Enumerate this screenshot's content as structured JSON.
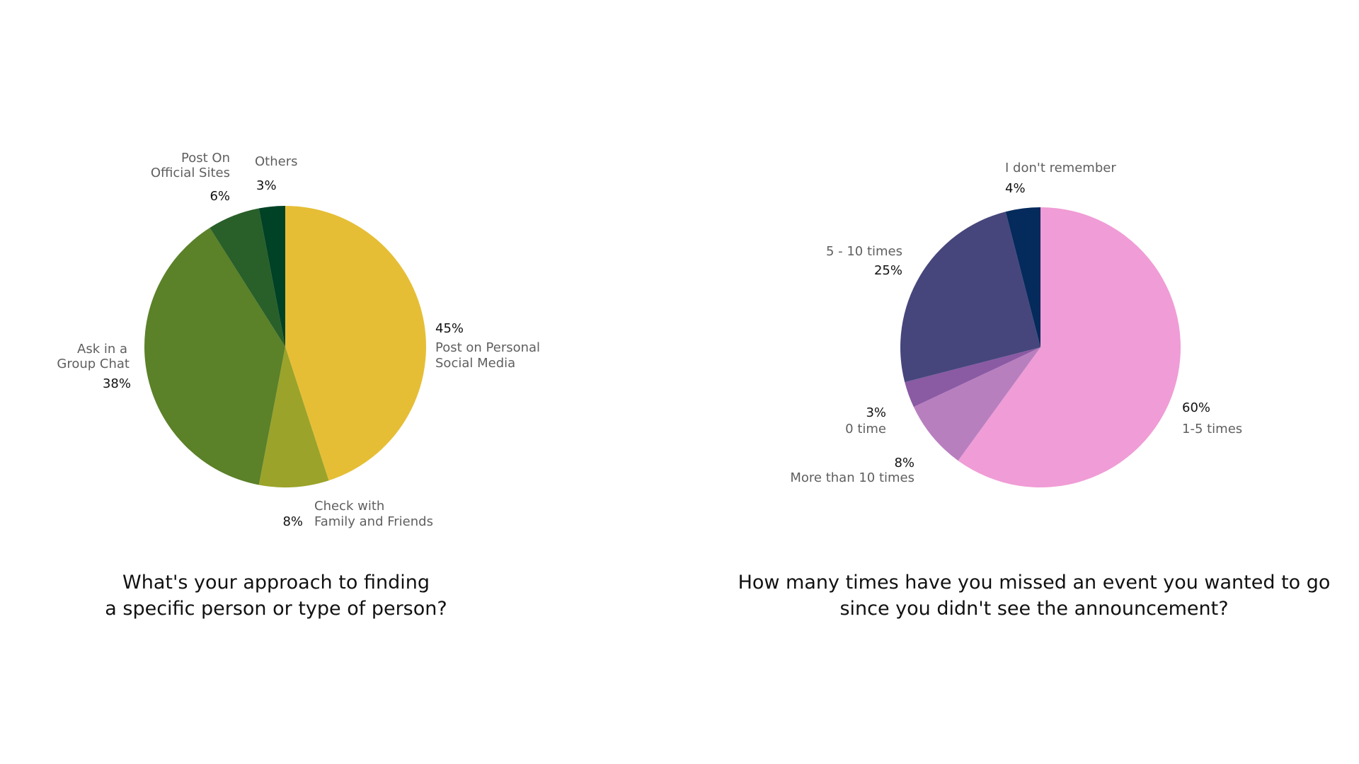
{
  "colors": {
    "background": "#ffffff",
    "label_name": "#5f5f5f",
    "label_value": "#111111"
  },
  "chart_data": [
    {
      "type": "pie",
      "title_lines": [
        "What's your approach to finding",
        "a specific person or type of person?"
      ],
      "slices": [
        {
          "label_lines": [
            "Post on Personal",
            "Social Media"
          ],
          "value": 45,
          "value_label": "45%",
          "color": "#e6be35"
        },
        {
          "label_lines": [
            "Check with",
            "Family and Friends"
          ],
          "value": 8,
          "value_label": "8%",
          "color": "#9ba32a"
        },
        {
          "label_lines": [
            "Ask in a",
            "Group Chat"
          ],
          "value": 38,
          "value_label": "38%",
          "color": "#5b8129"
        },
        {
          "label_lines": [
            "Post On",
            "Official Sites"
          ],
          "value": 6,
          "value_label": "6%",
          "color": "#295f29"
        },
        {
          "label_lines": [
            "Others"
          ],
          "value": 3,
          "value_label": "3%",
          "color": "#004225"
        }
      ]
    },
    {
      "type": "pie",
      "title_lines": [
        "How many times have you missed an event you wanted to go",
        "since you didn't see the announcement?"
      ],
      "slices": [
        {
          "label_lines": [
            "1-5 times"
          ],
          "value": 60,
          "value_label": "60%",
          "color": "#f09cd6"
        },
        {
          "label_lines": [
            "More than 10 times"
          ],
          "value": 8,
          "value_label": "8%",
          "color": "#b87fbf"
        },
        {
          "label_lines": [
            "0 time"
          ],
          "value": 3,
          "value_label": "3%",
          "color": "#8a5aa3"
        },
        {
          "label_lines": [
            "5 - 10 times"
          ],
          "value": 25,
          "value_label": "25%",
          "color": "#46467c"
        },
        {
          "label_lines": [
            "I don't remember"
          ],
          "value": 4,
          "value_label": "4%",
          "color": "#052a5c"
        }
      ]
    }
  ]
}
